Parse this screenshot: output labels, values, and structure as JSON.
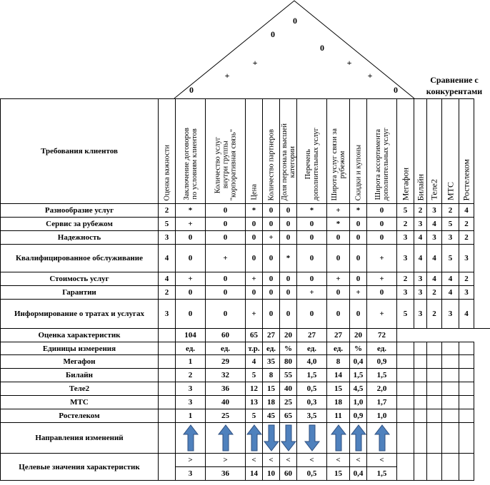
{
  "roof_marks": [
    "0",
    "0",
    "0",
    "+",
    "+",
    "+",
    "+",
    "0",
    "0"
  ],
  "comparison_title": "Сравнение с конкурентами",
  "header": {
    "requirements_label": "Требования клиентов",
    "importance_label": "Оценка важности",
    "characteristics": [
      "Заключение договоров\nпо условиям клиентов",
      "Количество услуг\nвнутри группы\n\"корпоративная связь\"",
      "Цена",
      "Количество партнеров",
      "Доля персонала высшей\nкатегории",
      "Перечень\nдополнительных услуг",
      "Широта услуг связи за\nрубежом",
      "Скидки и купоны",
      "Широта ассортимента\nдополнительных услуг"
    ],
    "competitors": [
      "Мегафон",
      "Билайн",
      "Теле2",
      "МТС",
      "Ростелеком"
    ]
  },
  "requirements": [
    {
      "name": "Разнообразие услуг",
      "importance": "2",
      "marks": [
        "*",
        "0",
        "*",
        "0",
        "0",
        "*",
        "+",
        "*",
        "0"
      ],
      "ratings": [
        "5",
        "2",
        "3",
        "2",
        "4"
      ]
    },
    {
      "name": "Сервис за рубежом",
      "importance": "5",
      "marks": [
        "+",
        "0",
        "0",
        "0",
        "0",
        "0",
        "*",
        "0",
        "0"
      ],
      "ratings": [
        "2",
        "3",
        "4",
        "5",
        "2"
      ]
    },
    {
      "name": "Надежность",
      "importance": "3",
      "marks": [
        "0",
        "0",
        "0",
        "+",
        "0",
        "0",
        "0",
        "0",
        "0"
      ],
      "ratings": [
        "3",
        "4",
        "3",
        "3",
        "2"
      ]
    },
    {
      "name": "Квалифицированное обслуживание",
      "importance": "4",
      "marks": [
        "0",
        "+",
        "0",
        "0",
        "*",
        "0",
        "0",
        "0",
        "+"
      ],
      "ratings": [
        "3",
        "4",
        "4",
        "5",
        "3"
      ]
    },
    {
      "name": "Стоимость услуг",
      "importance": "4",
      "marks": [
        "+",
        "0",
        "+",
        "0",
        "0",
        "0",
        "+",
        "0",
        "+"
      ],
      "ratings": [
        "2",
        "3",
        "4",
        "4",
        "2"
      ]
    },
    {
      "name": "Гарантии",
      "importance": "2",
      "marks": [
        "0",
        "0",
        "0",
        "0",
        "0",
        "+",
        "0",
        "+",
        "0"
      ],
      "ratings": [
        "3",
        "3",
        "2",
        "4",
        "3"
      ]
    },
    {
      "name": "Информирование о тратах и услугах",
      "importance": "3",
      "marks": [
        "0",
        "0",
        "+",
        "0",
        "0",
        "0",
        "0",
        "0",
        "+"
      ],
      "ratings": [
        "5",
        "3",
        "2",
        "3",
        "4"
      ]
    }
  ],
  "assessment": {
    "label": "Оценка характеристик",
    "values": [
      "104",
      "60",
      "65",
      "27",
      "20",
      "27",
      "27",
      "20",
      "72"
    ]
  },
  "units": {
    "label": "Единицы измерения",
    "values": [
      "ед.",
      "ед.",
      "т.р.",
      "ед.",
      "%",
      "ед.",
      "ед.",
      "%",
      "ед."
    ]
  },
  "operators": [
    {
      "name": "Мегафон",
      "values": [
        "1",
        "29",
        "4",
        "35",
        "80",
        "4,0",
        "8",
        "0,4",
        "0,9"
      ]
    },
    {
      "name": "Билайн",
      "values": [
        "2",
        "32",
        "5",
        "8",
        "55",
        "1,5",
        "14",
        "1,5",
        "1,5"
      ]
    },
    {
      "name": "Теле2",
      "values": [
        "3",
        "36",
        "12",
        "15",
        "40",
        "0,5",
        "15",
        "4,5",
        "2,0"
      ]
    },
    {
      "name": "МТС",
      "values": [
        "3",
        "40",
        "13",
        "18",
        "25",
        "0,3",
        "18",
        "1,0",
        "1,7"
      ]
    },
    {
      "name": "Ростелеком",
      "values": [
        "1",
        "25",
        "5",
        "45",
        "65",
        "3,5",
        "11",
        "0,9",
        "1,0"
      ]
    }
  ],
  "direction": {
    "label": "Направления изменений",
    "arrows": [
      "up",
      "up",
      "up",
      "down",
      "down",
      "down",
      "up",
      "up",
      "up"
    ]
  },
  "targets": {
    "label": "Целевые значения характеристик",
    "signs": [
      ">",
      ">",
      "<",
      "<",
      "<",
      "<",
      "<",
      "<",
      "<"
    ],
    "values": [
      "3",
      "36",
      "14",
      "10",
      "60",
      "0,5",
      "15",
      "0,4",
      "1,5"
    ]
  },
  "colors": {
    "arrow_fill": "#4f81bd",
    "arrow_stroke": "#2f4f7f",
    "grid": "#000000"
  }
}
